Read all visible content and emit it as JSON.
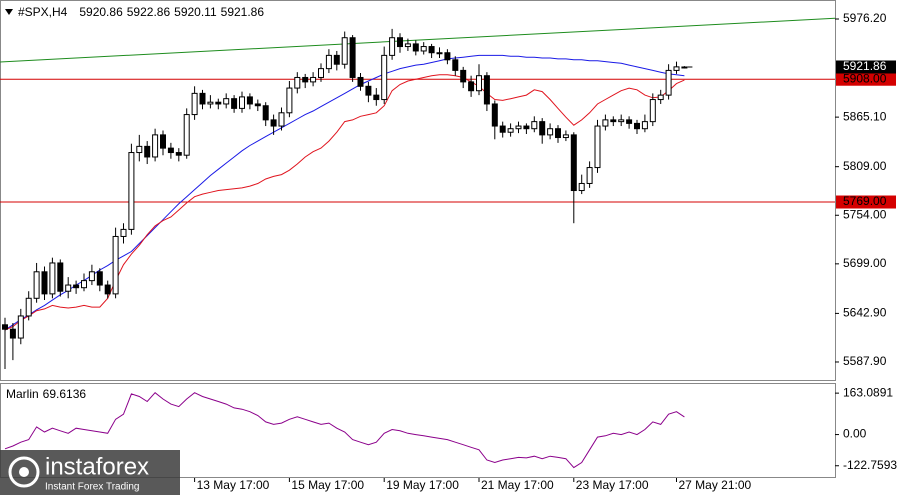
{
  "chart_data": {
    "type": "candlestick",
    "title": "#SPX,H4",
    "categories": [
      null,
      null,
      null,
      null,
      null,
      null,
      null,
      null,
      null,
      null,
      null,
      null,
      null,
      null,
      null,
      null,
      null,
      null,
      null,
      null,
      null,
      null,
      null,
      null,
      "13 May 17:00",
      null,
      null,
      null,
      null,
      null,
      null,
      null,
      null,
      null,
      null,
      null,
      "15 May 17:00",
      null,
      null,
      null,
      null,
      null,
      null,
      null,
      null,
      null,
      null,
      null,
      "19 May 17:00",
      null,
      null,
      null,
      null,
      null,
      null,
      null,
      null,
      null,
      null,
      null,
      "21 May 17:00",
      null,
      null,
      null,
      null,
      null,
      null,
      null,
      null,
      null,
      null,
      null,
      "23 May 17:00",
      null,
      null,
      null,
      null,
      null,
      null,
      null,
      null,
      null,
      null,
      null,
      null,
      "27 May 21:00",
      null
    ],
    "open": [
      5630,
      5625,
      5615,
      5640,
      5660,
      5690,
      5665,
      5700,
      5668,
      5675,
      5672,
      5680,
      5690,
      5675,
      5665,
      5730,
      5738,
      5825,
      5832,
      5820,
      5845,
      5830,
      5825,
      5822,
      5868,
      5892,
      5880,
      5882,
      5880,
      5886,
      5875,
      5888,
      5880,
      5878,
      5862,
      5855,
      5870,
      5898,
      5910,
      5905,
      5910,
      5920,
      5935,
      5925,
      5955,
      5910,
      5900,
      5890,
      5885,
      5935,
      5955,
      5945,
      5948,
      5940,
      5945,
      5938,
      5938,
      5930,
      5918,
      5905,
      5895,
      5912,
      5880,
      5855,
      5848,
      5852,
      5855,
      5852,
      5860,
      5845,
      5852,
      5842,
      5845,
      5782,
      5790,
      5808,
      5855,
      5862,
      5860,
      5862,
      5858,
      5852,
      5860,
      5885,
      5890,
      5918,
      5920.86
    ],
    "high": [
      5638,
      5632,
      5648,
      5668,
      5700,
      5696,
      5706,
      5704,
      5684,
      5680,
      5688,
      5698,
      5694,
      5680,
      5740,
      5745,
      5835,
      5845,
      5838,
      5852,
      5850,
      5836,
      5830,
      5875,
      5900,
      5896,
      5890,
      5886,
      5892,
      5890,
      5894,
      5892,
      5885,
      5882,
      5868,
      5876,
      5906,
      5916,
      5914,
      5916,
      5926,
      5942,
      5940,
      5962,
      5958,
      5915,
      5905,
      5898,
      5945,
      5965,
      5960,
      5954,
      5952,
      5950,
      5948,
      5944,
      5942,
      5934,
      5922,
      5912,
      5925,
      5916,
      5884,
      5860,
      5858,
      5860,
      5858,
      5866,
      5864,
      5858,
      5856,
      5850,
      5848,
      5800,
      5815,
      5862,
      5868,
      5866,
      5868,
      5866,
      5862,
      5868,
      5892,
      5896,
      5925,
      5928,
      5922.86
    ],
    "low": [
      5580,
      5590,
      5608,
      5635,
      5655,
      5658,
      5660,
      5662,
      5660,
      5665,
      5668,
      5675,
      5668,
      5660,
      5660,
      5722,
      5732,
      5815,
      5812,
      5815,
      5822,
      5818,
      5815,
      5818,
      5862,
      5874,
      5875,
      5874,
      5875,
      5870,
      5870,
      5874,
      5872,
      5855,
      5845,
      5850,
      5865,
      5892,
      5898,
      5900,
      5905,
      5915,
      5918,
      5920,
      5905,
      5895,
      5882,
      5878,
      5880,
      5930,
      5938,
      5940,
      5935,
      5936,
      5932,
      5932,
      5925,
      5912,
      5898,
      5888,
      5890,
      5872,
      5840,
      5842,
      5843,
      5847,
      5846,
      5848,
      5835,
      5840,
      5836,
      5838,
      5745,
      5778,
      5785,
      5802,
      5850,
      5855,
      5855,
      5852,
      5846,
      5848,
      5855,
      5880,
      5885,
      5914,
      5920.11
    ],
    "close": [
      5625,
      5615,
      5640,
      5660,
      5690,
      5665,
      5700,
      5668,
      5675,
      5672,
      5680,
      5690,
      5675,
      5665,
      5730,
      5738,
      5825,
      5832,
      5820,
      5845,
      5830,
      5825,
      5822,
      5868,
      5892,
      5880,
      5882,
      5880,
      5886,
      5875,
      5888,
      5880,
      5878,
      5862,
      5855,
      5870,
      5898,
      5910,
      5905,
      5910,
      5920,
      5935,
      5925,
      5955,
      5910,
      5900,
      5890,
      5885,
      5935,
      5955,
      5945,
      5948,
      5940,
      5945,
      5938,
      5938,
      5930,
      5918,
      5905,
      5895,
      5912,
      5880,
      5855,
      5848,
      5852,
      5855,
      5852,
      5860,
      5845,
      5852,
      5842,
      5845,
      5782,
      5790,
      5808,
      5855,
      5862,
      5860,
      5862,
      5858,
      5852,
      5860,
      5885,
      5890,
      5918,
      5922,
      5921.86
    ],
    "up_color": "#ffffff",
    "down_color": "#000000",
    "overlays": [
      {
        "color": "#1a1ae6",
        "values": [
          5624,
          5630,
          5636,
          5641,
          5647,
          5652,
          5658,
          5664,
          5669,
          5675,
          5680,
          5686,
          5692,
          5697,
          5703,
          5708,
          5713,
          5722,
          5731,
          5740,
          5749,
          5758,
          5767,
          5775,
          5783,
          5791,
          5799,
          5806,
          5813,
          5820,
          5827,
          5833,
          5838,
          5843,
          5848,
          5853,
          5858,
          5863,
          5868,
          5872,
          5877,
          5882,
          5887,
          5892,
          5897,
          5902,
          5906,
          5910,
          5914,
          5917,
          5920,
          5922,
          5924,
          5925,
          5927,
          5929,
          5931,
          5932,
          5933,
          5934,
          5935,
          5935,
          5935,
          5935,
          5934,
          5934,
          5933,
          5933,
          5932,
          5932,
          5931,
          5931,
          5930,
          5930,
          5929,
          5929,
          5928,
          5927,
          5926,
          5924,
          5922,
          5920,
          5918,
          5916,
          5914,
          5913,
          5912
        ]
      },
      {
        "color": "#e0141e",
        "values": [
          5624,
          5628,
          5635,
          5640,
          5646,
          5648,
          5652,
          5650,
          5649,
          5650,
          5652,
          5650,
          5650,
          5660,
          5680,
          5698,
          5710,
          5720,
          5732,
          5742,
          5748,
          5752,
          5760,
          5768,
          5775,
          5778,
          5780,
          5782,
          5783,
          5784,
          5785,
          5787,
          5790,
          5795,
          5798,
          5800,
          5805,
          5812,
          5820,
          5826,
          5830,
          5838,
          5848,
          5860,
          5862,
          5866,
          5868,
          5870,
          5878,
          5895,
          5902,
          5906,
          5908,
          5910,
          5912,
          5913,
          5913,
          5912,
          5910,
          5905,
          5900,
          5892,
          5885,
          5884,
          5886,
          5888,
          5890,
          5896,
          5894,
          5885,
          5875,
          5865,
          5856,
          5862,
          5870,
          5880,
          5885,
          5890,
          5895,
          5898,
          5896,
          5890,
          5887,
          5888,
          5895,
          5903,
          5907
        ]
      }
    ],
    "trendline": {
      "color": "#1e8c1e",
      "values": [
        5927.5,
        5977
      ]
    },
    "levels": {
      "color": "#d40000",
      "values": [
        5908,
        5769
      ],
      "value_labels": [
        "5908.00",
        "5769.00"
      ]
    },
    "ylim": [
      5567.5,
      5997.7
    ],
    "yticks": [
      {
        "value": 5976.2,
        "label": "5976.20"
      },
      {
        "value": 5865.1,
        "label": "5865.10"
      },
      {
        "value": 5809,
        "label": "5809.00"
      },
      {
        "value": 5754,
        "label": "5754.00"
      },
      {
        "value": 5699,
        "label": "5699.00"
      },
      {
        "value": 5642.9,
        "label": "5642.90"
      },
      {
        "value": 5587.9,
        "label": "5587.90"
      }
    ],
    "oscillator": {
      "name": "Marlin",
      "color": "#8b008b",
      "values": [
        -56,
        -45,
        -30,
        -20,
        30,
        10,
        25,
        15,
        5,
        25,
        20,
        15,
        10,
        5,
        60,
        80,
        160,
        150,
        130,
        165,
        140,
        120,
        110,
        140,
        165,
        150,
        140,
        130,
        120,
        105,
        100,
        90,
        75,
        50,
        40,
        45,
        60,
        70,
        60,
        50,
        40,
        45,
        25,
        10,
        -20,
        -30,
        -40,
        -30,
        5,
        20,
        15,
        5,
        0,
        -5,
        -10,
        -15,
        -20,
        -30,
        -40,
        -50,
        -60,
        -100,
        -110,
        -100,
        -95,
        -90,
        -92,
        -85,
        -95,
        -85,
        -90,
        -95,
        -130,
        -110,
        -60,
        -10,
        -5,
        5,
        0,
        10,
        0,
        20,
        50,
        40,
        80,
        90,
        69.6136
      ],
      "ylim": [
        -171,
        203
      ],
      "yticks": [
        163.0891,
        {
          "value": 0,
          "label": "0.00"
        },
        -122.7593
      ]
    }
  },
  "logo": {
    "name": "instaforex",
    "tagline": "Instant Forex Trading"
  }
}
